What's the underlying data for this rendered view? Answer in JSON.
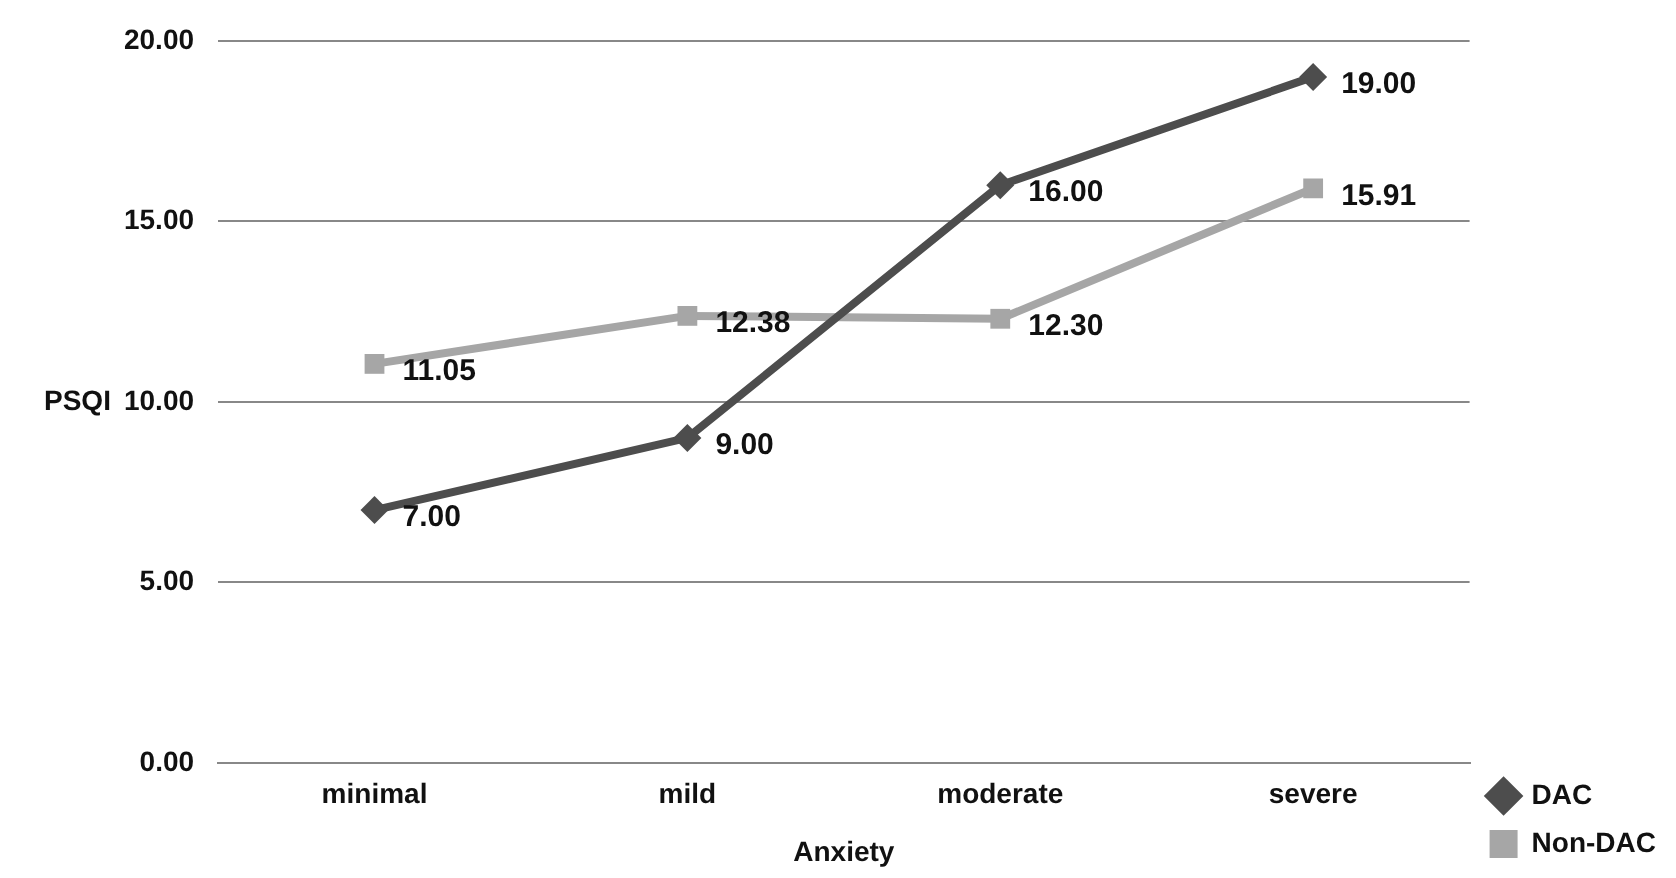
{
  "chart_data": {
    "type": "line",
    "xlabel": "Anxiety",
    "ylabel": "PSQI",
    "categories": [
      "minimal",
      "mild",
      "moderate",
      "severe"
    ],
    "series": [
      {
        "name": "DAC",
        "color": "#4d4d4d",
        "marker": "diamond",
        "values": [
          7.0,
          9.0,
          16.0,
          19.0
        ],
        "value_labels": [
          "7.00",
          "9.00",
          "16.00",
          "19.00"
        ]
      },
      {
        "name": "Non-DAC",
        "color": "#a6a6a6",
        "marker": "square",
        "values": [
          11.05,
          12.38,
          12.3,
          15.91
        ],
        "value_labels": [
          "11.05",
          "12.38",
          "12.30",
          "15.91"
        ]
      }
    ],
    "ylim": [
      0,
      20
    ],
    "yticks": [
      {
        "value": 0,
        "label": "0.00"
      },
      {
        "value": 5,
        "label": "5.00"
      },
      {
        "value": 10,
        "label": "10.00"
      },
      {
        "value": 15,
        "label": "15.00"
      },
      {
        "value": 20,
        "label": "20.00"
      }
    ],
    "grid": "y",
    "legend": "bottom right"
  }
}
